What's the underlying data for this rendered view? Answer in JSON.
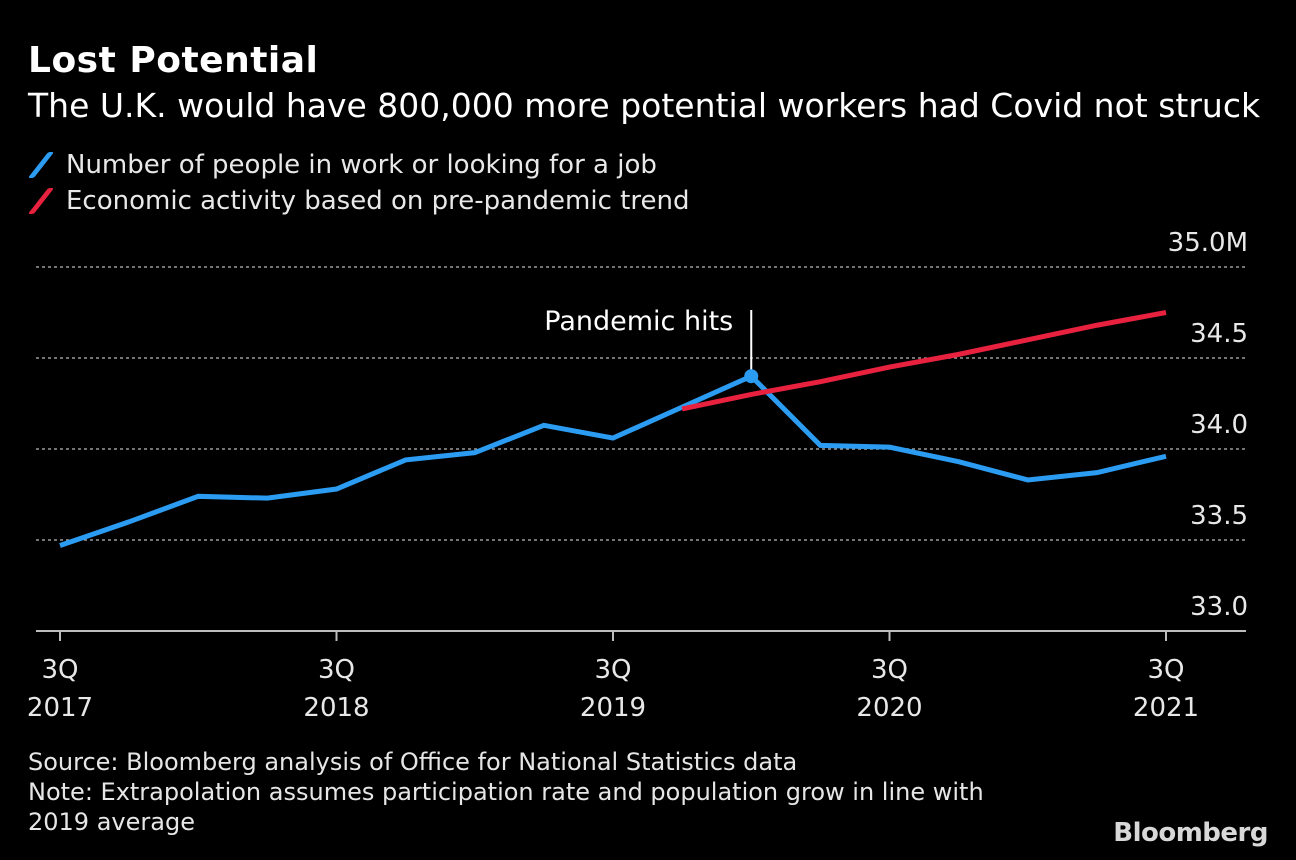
{
  "header": {
    "title": "Lost Potential",
    "subtitle": "The U.K. would have 800,000 more potential workers had Covid not struck"
  },
  "legend": [
    {
      "label": "Number of people in work or looking for a job",
      "color": "#2b9cf2"
    },
    {
      "label": "Economic activity based on pre-pandemic trend",
      "color": "#e8213f"
    }
  ],
  "footer": {
    "source": "Source: Bloomberg analysis of Office for National Statistics data",
    "note_line1": "Note: Extrapolation assumes participation rate and population grow in line with",
    "note_line2": "2019 average",
    "brand": "Bloomberg"
  },
  "chart_data": {
    "type": "line",
    "title": "Lost Potential",
    "subtitle": "The U.K. would have 800,000 more potential workers had Covid not struck",
    "xlabel": "",
    "ylabel": "",
    "ylim": [
      33.0,
      35.0
    ],
    "y_ticks": [
      {
        "value": 35.0,
        "label": "35.0M"
      },
      {
        "value": 34.5,
        "label": "34.5"
      },
      {
        "value": 34.0,
        "label": "34.0"
      },
      {
        "value": 33.5,
        "label": "33.5"
      },
      {
        "value": 33.0,
        "label": "33.0"
      }
    ],
    "grid": true,
    "legend_position": "top-left",
    "x_ticks": [
      {
        "q": 0,
        "line1": "3Q",
        "line2": "2017"
      },
      {
        "q": 4,
        "line1": "3Q",
        "line2": "2018"
      },
      {
        "q": 8,
        "line1": "3Q",
        "line2": "2019"
      },
      {
        "q": 12,
        "line1": "3Q",
        "line2": "2020"
      },
      {
        "q": 16,
        "line1": "3Q",
        "line2": "2021"
      }
    ],
    "series": [
      {
        "name": "Number of people in work or looking for a job",
        "color": "#2b9cf2",
        "x": [
          0,
          1,
          2,
          3,
          4,
          5,
          6,
          7,
          8,
          9,
          10,
          11,
          12,
          13,
          14,
          15,
          16
        ],
        "values": [
          33.47,
          33.6,
          33.74,
          33.73,
          33.78,
          33.94,
          33.98,
          34.13,
          34.06,
          34.23,
          34.4,
          34.02,
          34.01,
          33.93,
          33.83,
          33.87,
          33.96
        ]
      },
      {
        "name": "Economic activity based on pre-pandemic trend",
        "color": "#e8213f",
        "x": [
          9,
          10,
          11,
          12,
          13,
          14,
          15,
          16
        ],
        "values": [
          34.22,
          34.3,
          34.37,
          34.45,
          34.52,
          34.6,
          34.68,
          34.75
        ]
      }
    ],
    "annotation": {
      "label": "Pandemic hits",
      "x": 10,
      "value": 34.4
    }
  }
}
